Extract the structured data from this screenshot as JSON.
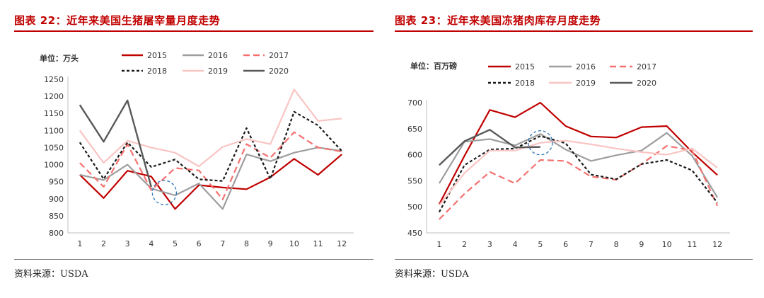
{
  "charts": [
    {
      "figure_title": "图表 22：近年来美国生猪屠宰量月度走势",
      "source": "资料来源：USDA"
    },
    {
      "figure_title": "图表 23：近年来美国冻猪肉库存月度走势",
      "source": "资料来源：USDA"
    }
  ],
  "chart_data": [
    {
      "type": "line",
      "title": "图表 22：近年来美国生猪屠宰量月度走势",
      "unit_label": "单位：万头",
      "x": [
        1,
        2,
        3,
        4,
        5,
        6,
        7,
        8,
        9,
        10,
        11,
        12
      ],
      "xtick_labels": [
        "1",
        "2",
        "3",
        "4",
        "5",
        "6",
        "7",
        "8",
        "9",
        "10",
        "11",
        "12"
      ],
      "ylim": [
        800,
        1250
      ],
      "yticks": [
        800,
        850,
        900,
        950,
        1000,
        1050,
        1100,
        1150,
        1200,
        1250
      ],
      "grid": false,
      "legend": "top",
      "annotation": "dashed blue circle around month 4–5",
      "series": [
        {
          "name": "2015",
          "color": "#c00000",
          "dash": "solid",
          "width": 2.2,
          "values": [
            970,
            902,
            982,
            965,
            870,
            940,
            933,
            928,
            963,
            1017,
            970,
            1030
          ]
        },
        {
          "name": "2016",
          "color": "#9e9e9e",
          "dash": "solid",
          "width": 2.2,
          "values": [
            970,
            955,
            1000,
            930,
            910,
            945,
            870,
            1030,
            1010,
            1035,
            1050,
            1040
          ]
        },
        {
          "name": "2017",
          "color": "#f4716f",
          "dash": "long",
          "width": 2.2,
          "values": [
            1005,
            935,
            1060,
            925,
            990,
            983,
            898,
            1060,
            1020,
            1095,
            1050,
            1038
          ]
        },
        {
          "name": "2018",
          "color": "#1a1a1a",
          "dash": "short",
          "width": 2.2,
          "values": [
            1065,
            958,
            1065,
            993,
            1015,
            957,
            952,
            1107,
            958,
            1155,
            1115,
            1040
          ]
        },
        {
          "name": "2019",
          "color": "#f9c5c3",
          "dash": "solid",
          "width": 2.2,
          "values": [
            1100,
            1005,
            1070,
            1050,
            1035,
            995,
            1052,
            1075,
            1060,
            1220,
            1128,
            1135
          ]
        },
        {
          "name": "2020",
          "color": "#595959",
          "dash": "solid",
          "width": 2.4,
          "values": [
            1175,
            1067,
            1188,
            935,
            null,
            null,
            null,
            null,
            null,
            null,
            null,
            null
          ]
        }
      ]
    },
    {
      "type": "line",
      "title": "图表 23：近年来美国冻猪肉库存月度走势",
      "unit_label": "单位：百万磅",
      "x": [
        1,
        2,
        3,
        4,
        5,
        6,
        7,
        8,
        9,
        10,
        11,
        12
      ],
      "xtick_labels": [
        "1",
        "2",
        "3",
        "4",
        "5",
        "6",
        "7",
        "8",
        "9",
        "10",
        "11",
        "12"
      ],
      "ylim": [
        450,
        700
      ],
      "yticks": [
        450,
        500,
        550,
        600,
        650,
        700
      ],
      "grid": false,
      "legend": "top",
      "annotation": "dashed blue circle around month 5",
      "series": [
        {
          "name": "2015",
          "color": "#c00000",
          "dash": "solid",
          "width": 2.2,
          "values": [
            505,
            598,
            686,
            672,
            700,
            655,
            635,
            633,
            653,
            655,
            605,
            561
          ]
        },
        {
          "name": "2016",
          "color": "#9e9e9e",
          "dash": "solid",
          "width": 2.2,
          "values": [
            545,
            625,
            630,
            618,
            640,
            610,
            588,
            599,
            608,
            642,
            598,
            518
          ]
        },
        {
          "name": "2017",
          "color": "#f4716f",
          "dash": "long",
          "width": 2.2,
          "values": [
            476,
            525,
            567,
            545,
            590,
            588,
            558,
            552,
            582,
            617,
            608,
            502
          ]
        },
        {
          "name": "2018",
          "color": "#1a1a1a",
          "dash": "short",
          "width": 2.2,
          "values": [
            490,
            580,
            610,
            612,
            636,
            622,
            562,
            553,
            582,
            590,
            570,
            508
          ]
        },
        {
          "name": "2019",
          "color": "#f9c5c3",
          "dash": "solid",
          "width": 2.2,
          "values": [
            503,
            565,
            608,
            608,
            623,
            627,
            620,
            612,
            605,
            600,
            612,
            575
          ]
        },
        {
          "name": "2020",
          "color": "#595959",
          "dash": "solid",
          "width": 2.4,
          "values": [
            580,
            626,
            648,
            614,
            615,
            null,
            null,
            null,
            null,
            null,
            null,
            null
          ]
        }
      ]
    }
  ]
}
